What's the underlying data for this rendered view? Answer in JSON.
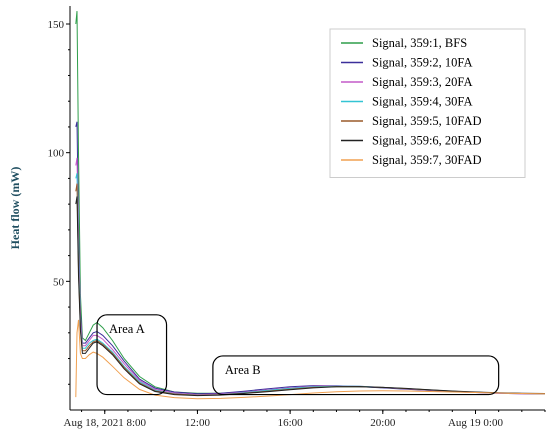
{
  "chart_data": {
    "type": "line",
    "title": "",
    "xlabel": "",
    "ylabel": "Heat flow (mW)",
    "x_unit": "time",
    "xlim": [
      "2021-08-18 06:30",
      "2021-08-19 03:00"
    ],
    "ylim": [
      0,
      157
    ],
    "x_ticks": [
      {
        "t": "2021-08-18 08:00",
        "label": "Aug 18, 2021 8:00"
      },
      {
        "t": "2021-08-18 12:00",
        "label": "12:00"
      },
      {
        "t": "2021-08-18 16:00",
        "label": "16:00"
      },
      {
        "t": "2021-08-18 20:00",
        "label": "20:00"
      },
      {
        "t": "2021-08-19 00:00",
        "label": "Aug 19 0:00"
      }
    ],
    "y_ticks": [
      {
        "v": 50,
        "label": "50"
      },
      {
        "v": 100,
        "label": "100"
      },
      {
        "v": 150,
        "label": "150"
      }
    ],
    "grid": false,
    "legend_position": "top-right",
    "series": [
      {
        "name": "Signal, 359:1, BFS",
        "color": "#2e9e4a",
        "x": [
          "2021-08-18 06:45",
          "2021-08-18 06:48",
          "2021-08-18 06:52",
          "2021-08-18 06:57",
          "2021-08-18 07:02",
          "2021-08-18 07:10",
          "2021-08-18 07:20",
          "2021-08-18 07:30",
          "2021-08-18 07:40",
          "2021-08-18 07:55",
          "2021-08-18 08:20",
          "2021-08-18 08:50",
          "2021-08-18 09:30",
          "2021-08-18 10:10",
          "2021-08-18 11:00",
          "2021-08-18 12:00",
          "2021-08-18 13:00",
          "2021-08-18 14:00",
          "2021-08-18 15:00",
          "2021-08-18 16:00",
          "2021-08-18 17:00",
          "2021-08-18 18:00",
          "2021-08-18 19:00",
          "2021-08-18 20:00",
          "2021-08-18 21:00",
          "2021-08-18 22:00",
          "2021-08-18 23:00",
          "2021-08-19 00:00",
          "2021-08-19 01:00",
          "2021-08-19 02:00",
          "2021-08-19 03:00"
        ],
        "y": [
          150,
          155,
          100,
          45,
          28,
          27,
          30,
          33,
          34,
          32,
          27,
          20,
          13,
          9,
          7,
          6.5,
          6.5,
          7,
          7.5,
          8.5,
          9,
          9,
          9,
          8.7,
          8.2,
          7.7,
          7.2,
          6.9,
          6.6,
          6.4,
          6.3
        ]
      },
      {
        "name": "Signal, 359:2, 10FA",
        "color": "#3b2f9a",
        "x": [
          "2021-08-18 06:45",
          "2021-08-18 06:48",
          "2021-08-18 06:52",
          "2021-08-18 06:57",
          "2021-08-18 07:02",
          "2021-08-18 07:10",
          "2021-08-18 07:20",
          "2021-08-18 07:30",
          "2021-08-18 07:40",
          "2021-08-18 07:55",
          "2021-08-18 08:20",
          "2021-08-18 08:50",
          "2021-08-18 09:30",
          "2021-08-18 10:10",
          "2021-08-18 11:00",
          "2021-08-18 12:00",
          "2021-08-18 13:00",
          "2021-08-18 14:00",
          "2021-08-18 15:00",
          "2021-08-18 16:00",
          "2021-08-18 17:00",
          "2021-08-18 18:00",
          "2021-08-18 19:00",
          "2021-08-18 20:00",
          "2021-08-18 21:00",
          "2021-08-18 22:00",
          "2021-08-18 23:00",
          "2021-08-19 00:00",
          "2021-08-19 01:00",
          "2021-08-19 02:00",
          "2021-08-19 03:00"
        ],
        "y": [
          110,
          112,
          70,
          38,
          26,
          26,
          28,
          30,
          30.5,
          29,
          25,
          19,
          12,
          8.5,
          7,
          6.3,
          6.5,
          7.3,
          8.2,
          9,
          9.5,
          9.4,
          9.1,
          8.6,
          8.1,
          7.6,
          7.1,
          6.8,
          6.5,
          6.3,
          6.2
        ]
      },
      {
        "name": "Signal, 359:3, 20FA",
        "color": "#c45ac8",
        "x": [
          "2021-08-18 06:45",
          "2021-08-18 06:48",
          "2021-08-18 06:52",
          "2021-08-18 06:57",
          "2021-08-18 07:02",
          "2021-08-18 07:10",
          "2021-08-18 07:20",
          "2021-08-18 07:30",
          "2021-08-18 07:40",
          "2021-08-18 07:55",
          "2021-08-18 08:20",
          "2021-08-18 08:50",
          "2021-08-18 09:30",
          "2021-08-18 10:10",
          "2021-08-18 11:00",
          "2021-08-18 12:00",
          "2021-08-18 13:00",
          "2021-08-18 14:00",
          "2021-08-18 15:00",
          "2021-08-18 16:00",
          "2021-08-18 17:00",
          "2021-08-18 18:00",
          "2021-08-18 19:00",
          "2021-08-18 20:00",
          "2021-08-18 21:00",
          "2021-08-18 22:00",
          "2021-08-18 23:00",
          "2021-08-19 00:00",
          "2021-08-19 01:00",
          "2021-08-19 02:00",
          "2021-08-19 03:00"
        ],
        "y": [
          95,
          98,
          65,
          36,
          25,
          25,
          27,
          29,
          29,
          27.5,
          23.5,
          18,
          11.5,
          8,
          6.6,
          6,
          6.2,
          6.9,
          7.8,
          8.6,
          9.2,
          9.4,
          9.2,
          8.8,
          8.2,
          7.7,
          7.2,
          6.8,
          6.5,
          6.3,
          6.2
        ]
      },
      {
        "name": "Signal, 359:4, 30FA",
        "color": "#33c4d4",
        "x": [
          "2021-08-18 06:45",
          "2021-08-18 06:48",
          "2021-08-18 06:52",
          "2021-08-18 06:57",
          "2021-08-18 07:02",
          "2021-08-18 07:10",
          "2021-08-18 07:20",
          "2021-08-18 07:30",
          "2021-08-18 07:40",
          "2021-08-18 07:55",
          "2021-08-18 08:20",
          "2021-08-18 08:50",
          "2021-08-18 09:30",
          "2021-08-18 10:10",
          "2021-08-18 11:00",
          "2021-08-18 12:00",
          "2021-08-18 13:00",
          "2021-08-18 14:00",
          "2021-08-18 15:00",
          "2021-08-18 16:00",
          "2021-08-18 17:00",
          "2021-08-18 18:00",
          "2021-08-18 19:00",
          "2021-08-18 20:00",
          "2021-08-18 21:00",
          "2021-08-18 22:00",
          "2021-08-18 23:00",
          "2021-08-19 00:00",
          "2021-08-19 01:00",
          "2021-08-19 02:00",
          "2021-08-19 03:00"
        ],
        "y": [
          90,
          92,
          60,
          33,
          24,
          24,
          26,
          27,
          27.5,
          26,
          22.5,
          17,
          11,
          7.6,
          6.3,
          5.8,
          6,
          6.7,
          7.6,
          8.4,
          9,
          9.3,
          9.2,
          8.8,
          8.3,
          7.8,
          7.3,
          6.9,
          6.6,
          6.4,
          6.3
        ]
      },
      {
        "name": "Signal, 359:5, 10FAD",
        "color": "#9a5a2a",
        "x": [
          "2021-08-18 06:45",
          "2021-08-18 06:48",
          "2021-08-18 06:52",
          "2021-08-18 06:57",
          "2021-08-18 07:02",
          "2021-08-18 07:10",
          "2021-08-18 07:20",
          "2021-08-18 07:30",
          "2021-08-18 07:40",
          "2021-08-18 07:55",
          "2021-08-18 08:20",
          "2021-08-18 08:50",
          "2021-08-18 09:30",
          "2021-08-18 10:10",
          "2021-08-18 11:00",
          "2021-08-18 12:00",
          "2021-08-18 13:00",
          "2021-08-18 14:00",
          "2021-08-18 15:00",
          "2021-08-18 16:00",
          "2021-08-18 17:00",
          "2021-08-18 18:00",
          "2021-08-18 19:00",
          "2021-08-18 20:00",
          "2021-08-18 21:00",
          "2021-08-18 22:00",
          "2021-08-18 23:00",
          "2021-08-19 00:00",
          "2021-08-19 01:00",
          "2021-08-19 02:00",
          "2021-08-19 03:00"
        ],
        "y": [
          85,
          88,
          55,
          32,
          23,
          23,
          25,
          26.5,
          27,
          25.5,
          22,
          16.5,
          10.5,
          7.4,
          6.2,
          5.7,
          5.9,
          6.5,
          7.3,
          8.1,
          8.8,
          9.1,
          9.1,
          8.8,
          8.3,
          7.8,
          7.3,
          6.9,
          6.6,
          6.4,
          6.3
        ]
      },
      {
        "name": "Signal, 359:6, 20FAD",
        "color": "#222222",
        "x": [
          "2021-08-18 06:45",
          "2021-08-18 06:48",
          "2021-08-18 06:52",
          "2021-08-18 06:57",
          "2021-08-18 07:02",
          "2021-08-18 07:10",
          "2021-08-18 07:20",
          "2021-08-18 07:30",
          "2021-08-18 07:40",
          "2021-08-18 07:55",
          "2021-08-18 08:20",
          "2021-08-18 08:50",
          "2021-08-18 09:30",
          "2021-08-18 10:10",
          "2021-08-18 11:00",
          "2021-08-18 12:00",
          "2021-08-18 13:00",
          "2021-08-18 14:00",
          "2021-08-18 15:00",
          "2021-08-18 16:00",
          "2021-08-18 17:00",
          "2021-08-18 18:00",
          "2021-08-18 19:00",
          "2021-08-18 20:00",
          "2021-08-18 21:00",
          "2021-08-18 22:00",
          "2021-08-18 23:00",
          "2021-08-19 00:00",
          "2021-08-19 01:00",
          "2021-08-19 02:00",
          "2021-08-19 03:00"
        ],
        "y": [
          80,
          83,
          52,
          31,
          22,
          22,
          24,
          26,
          26.5,
          25,
          21.5,
          16,
          10.2,
          7.2,
          6,
          5.6,
          5.8,
          6.4,
          7.1,
          7.9,
          8.6,
          9,
          9.1,
          8.8,
          8.4,
          7.9,
          7.4,
          7,
          6.7,
          6.5,
          6.4
        ]
      },
      {
        "name": "Signal, 359:7, 30FAD",
        "color": "#f0a050",
        "x": [
          "2021-08-18 06:45",
          "2021-08-18 06:48",
          "2021-08-18 06:52",
          "2021-08-18 06:57",
          "2021-08-18 07:02",
          "2021-08-18 07:10",
          "2021-08-18 07:20",
          "2021-08-18 07:30",
          "2021-08-18 07:40",
          "2021-08-18 07:55",
          "2021-08-18 08:20",
          "2021-08-18 08:50",
          "2021-08-18 09:30",
          "2021-08-18 10:10",
          "2021-08-18 11:00",
          "2021-08-18 12:00",
          "2021-08-18 13:00",
          "2021-08-18 14:00",
          "2021-08-18 15:00",
          "2021-08-18 16:00",
          "2021-08-18 17:00",
          "2021-08-18 18:00",
          "2021-08-18 19:00",
          "2021-08-18 20:00",
          "2021-08-18 21:00",
          "2021-08-18 22:00",
          "2021-08-18 23:00",
          "2021-08-19 00:00",
          "2021-08-19 01:00",
          "2021-08-19 02:00",
          "2021-08-19 03:00"
        ],
        "y": [
          5,
          30,
          35,
          22,
          20,
          20,
          21.5,
          22.5,
          22,
          20.5,
          17,
          12.5,
          8,
          5.8,
          4.8,
          4.4,
          4.5,
          4.9,
          5.4,
          6,
          6.6,
          7.1,
          7.4,
          7.5,
          7.4,
          7.2,
          7,
          6.8,
          6.6,
          6.4,
          6.3
        ]
      }
    ],
    "annotations": [
      {
        "label": "Area A",
        "x0": "2021-08-18 07:40",
        "x1": "2021-08-18 10:40",
        "y0": 6,
        "y1": 37
      },
      {
        "label": "Area B",
        "x0": "2021-08-18 12:40",
        "x1": "2021-08-19 01:00",
        "y0": 6,
        "y1": 21
      }
    ]
  }
}
